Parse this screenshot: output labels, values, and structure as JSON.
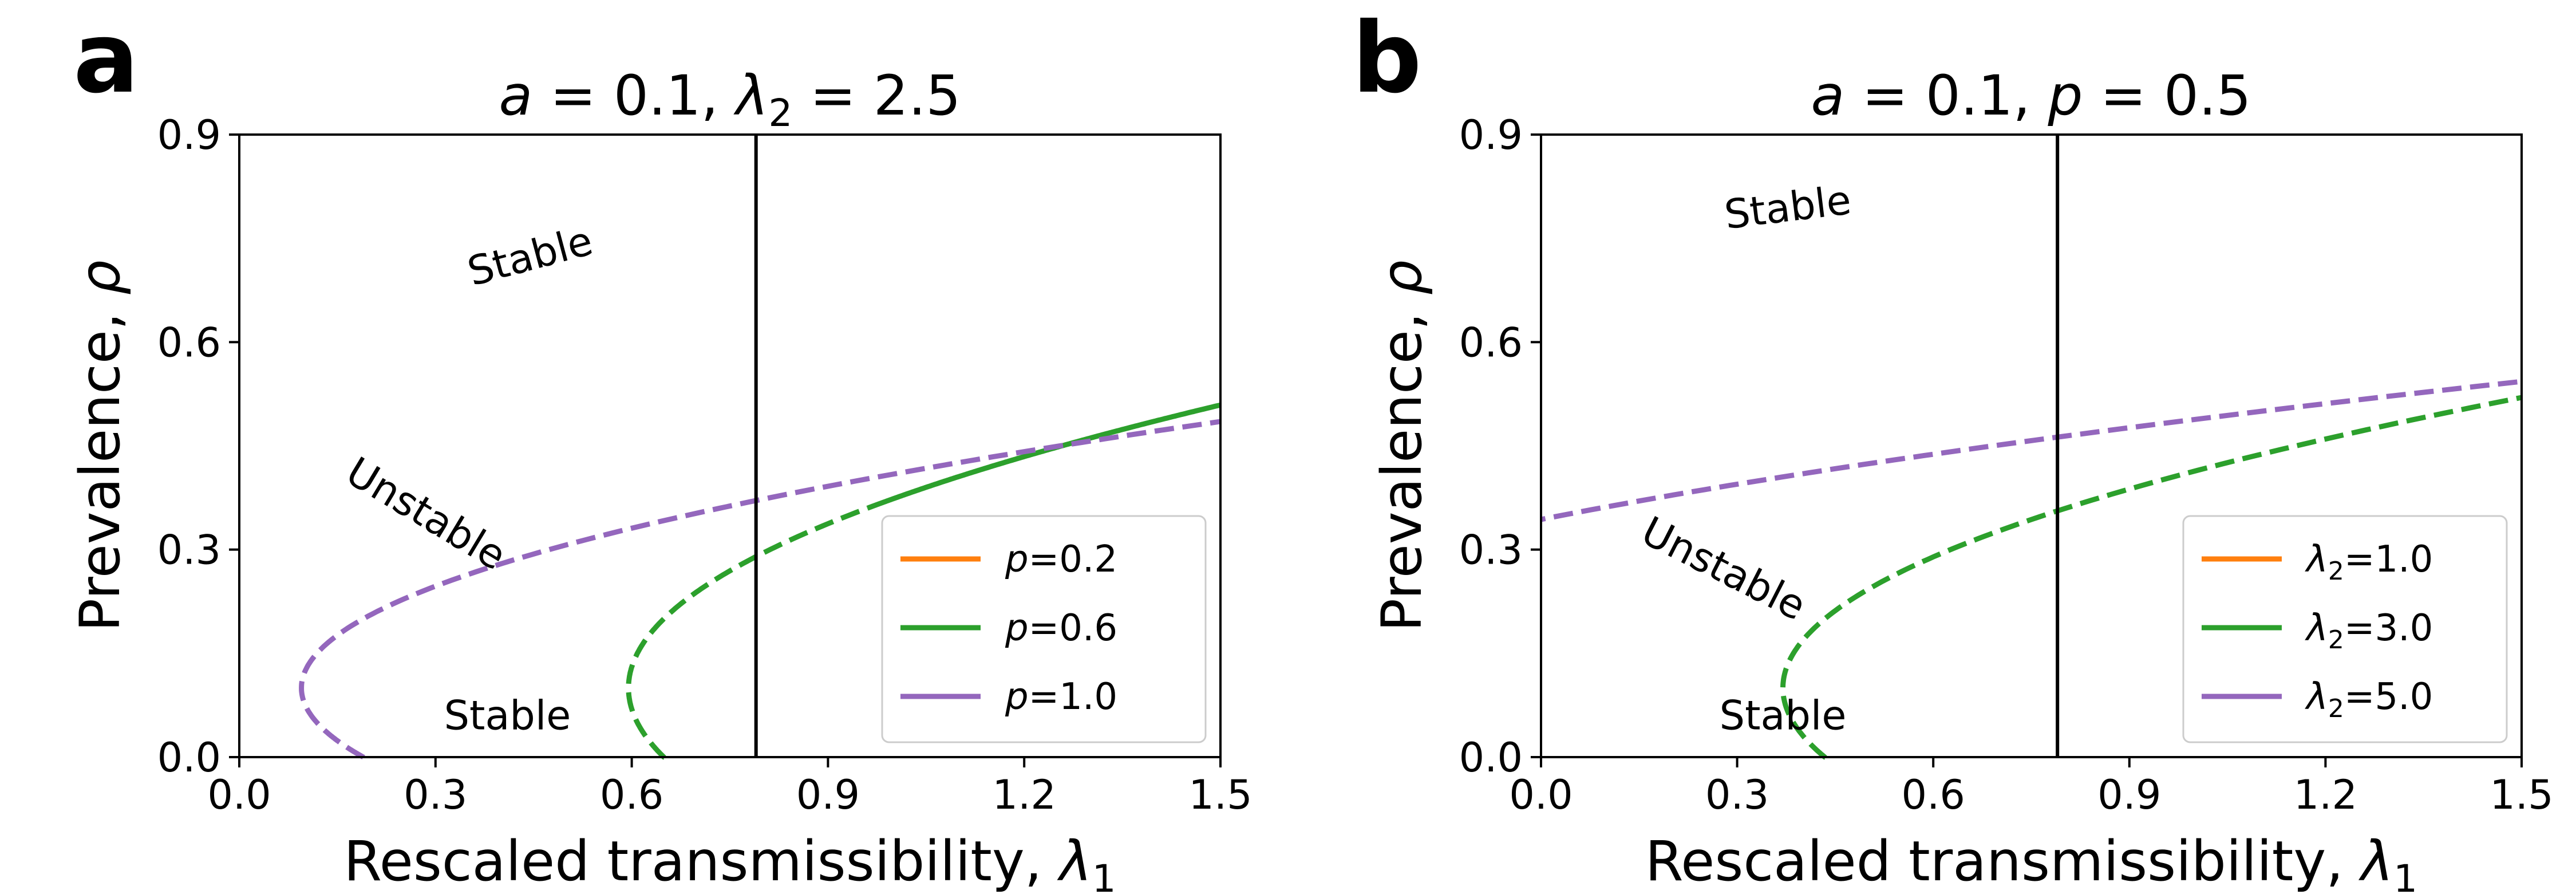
{
  "chart_data": [
    {
      "panel_label": "a",
      "type": "line",
      "title": "a = 0.1, λ₂ = 2.5",
      "title_parts": {
        "a_sym": "a",
        "a_eq": " = 0.1, ",
        "lam_sym": "λ",
        "lam_sub": "2",
        "lam_eq": " = 2.5"
      },
      "xlabel": "Rescaled transmissibility, λ₁",
      "xlabel_parts": {
        "text": "Rescaled transmissibility, ",
        "sym": "λ",
        "sub": "1"
      },
      "ylabel": "Prevalence, ρ",
      "ylabel_parts": {
        "text": "Prevalence, ",
        "sym": "ρ"
      },
      "xlim": [
        0.0,
        1.5
      ],
      "ylim": [
        0.0,
        0.9
      ],
      "xticks": [
        0.0,
        0.3,
        0.6,
        0.9,
        1.2,
        1.5
      ],
      "yticks": [
        0.0,
        0.3,
        0.6,
        0.9
      ],
      "xtick_labels": [
        "0.0",
        "0.3",
        "0.6",
        "0.9",
        "1.2",
        "1.5"
      ],
      "ytick_labels": [
        "0.0",
        "0.3",
        "0.6",
        "0.9"
      ],
      "threshold_line_x": 0.79,
      "series": [
        {
          "name": "p=0.2",
          "legend_sym": "p",
          "legend_val": "=0.2",
          "color": "#ff7f0e",
          "a": 0.0,
          "xc": 0.79,
          "xt": 0.79,
          "A": 1.05,
          "x_end": 1.5
        },
        {
          "name": "p=0.6",
          "legend_sym": "p",
          "legend_val": "=0.6",
          "color": "#2ca02c",
          "a": 0.1,
          "xc": 0.79,
          "xt": 0.595,
          "A": 0.43,
          "x_end": 1.5
        },
        {
          "name": "p=1.0",
          "legend_sym": "p",
          "legend_val": "=1.0",
          "color": "#9467bd",
          "a": 0.1,
          "xc": 0.79,
          "xt": 0.095,
          "A": 0.325,
          "x_end": 1.5
        }
      ],
      "legend": {
        "position": "lower-right"
      },
      "annotations": [
        {
          "text": "Stable",
          "x": 0.45,
          "y": 0.705,
          "rotate": -15
        },
        {
          "text": "Unstable",
          "x": 0.275,
          "y": 0.335,
          "rotate": 31
        },
        {
          "text": "Stable",
          "x": 0.41,
          "y": 0.04,
          "rotate": 0
        }
      ]
    },
    {
      "panel_label": "b",
      "type": "line",
      "title": "a = 0.1, p = 0.5",
      "title_parts": {
        "a_sym": "a",
        "a_eq": " = 0.1, ",
        "p_sym": "p",
        "p_eq": " = 0.5"
      },
      "xlabel": "Rescaled transmissibility, λ₁",
      "xlabel_parts": {
        "text": "Rescaled transmissibility, ",
        "sym": "λ",
        "sub": "1"
      },
      "ylabel": "Prevalence, ρ",
      "ylabel_parts": {
        "text": "Prevalence, ",
        "sym": "ρ"
      },
      "xlim": [
        0.0,
        1.5
      ],
      "ylim": [
        0.0,
        0.9
      ],
      "xticks": [
        0.0,
        0.3,
        0.6,
        0.9,
        1.2,
        1.5
      ],
      "yticks": [
        0.0,
        0.3,
        0.6,
        0.9
      ],
      "xtick_labels": [
        "0.0",
        "0.3",
        "0.6",
        "0.9",
        "1.2",
        "1.5"
      ],
      "ytick_labels": [
        "0.0",
        "0.3",
        "0.6",
        "0.9"
      ],
      "threshold_line_x": 0.79,
      "series": [
        {
          "name": "λ₂=1.0",
          "legend_sym": "λ",
          "legend_sub": "2",
          "legend_val": "=1.0",
          "color": "#ff7f0e",
          "a": 0.0,
          "xc": 0.79,
          "xt": 0.79,
          "A": 1.05,
          "x_end": 1.5
        },
        {
          "name": "λ₂=3.0",
          "legend_sym": "λ",
          "legend_sub": "2",
          "legend_val": "=3.0",
          "color": "#2ca02c",
          "a": 0.1,
          "xc": 0.79,
          "xt": 0.37,
          "A": 0.395,
          "x_end": 1.5
        },
        {
          "name": "λ₂=5.0",
          "legend_sym": "λ",
          "legend_sub": "2",
          "legend_val": "=5.0",
          "color": "#9467bd",
          "a": 0.1,
          "xc": 0.79,
          "xt": -0.65,
          "A": 0.3022,
          "x_end": 1.5
        }
      ],
      "legend": {
        "position": "lower-right"
      },
      "annotations": [
        {
          "text": "Stable",
          "x": 0.38,
          "y": 0.775,
          "rotate": -7
        },
        {
          "text": "Unstable",
          "x": 0.27,
          "y": 0.255,
          "rotate": 27
        },
        {
          "text": "Stable",
          "x": 0.37,
          "y": 0.04,
          "rotate": 0
        }
      ]
    }
  ]
}
